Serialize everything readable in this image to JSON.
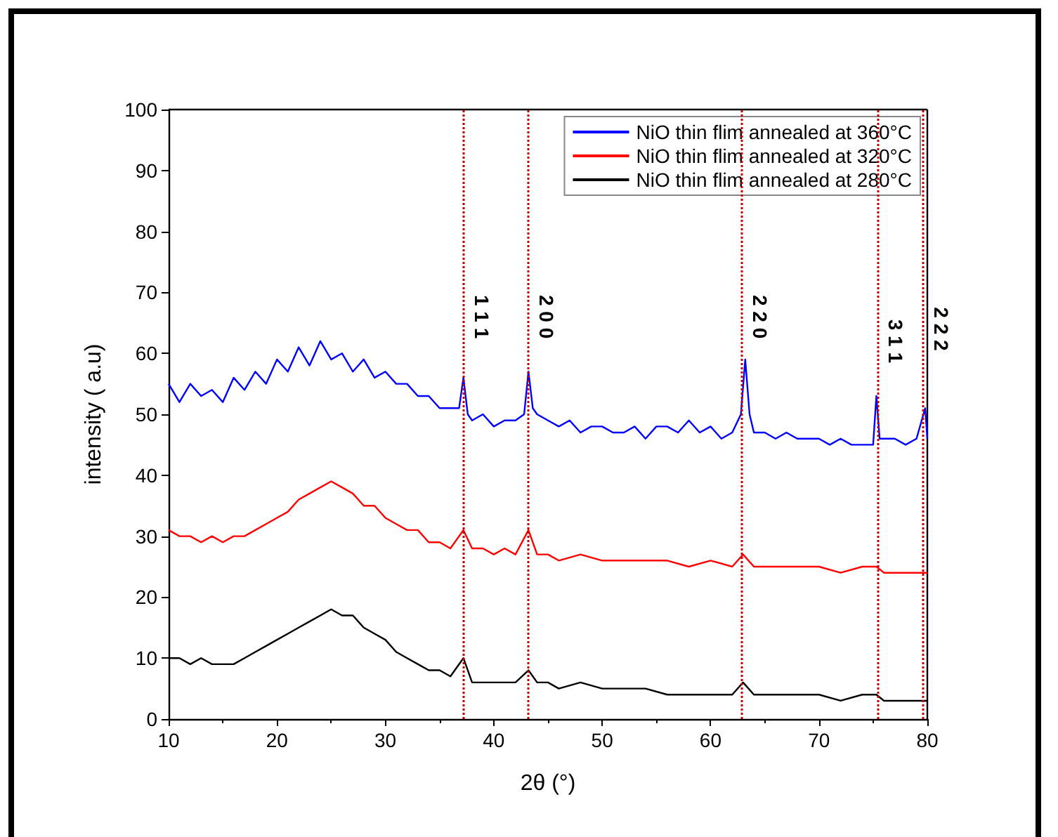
{
  "chart_data": {
    "type": "line",
    "xlabel": "2θ (°)",
    "ylabel": "intensity ( a.u)",
    "xlim": [
      10,
      80
    ],
    "xticks": [
      10,
      20,
      30,
      40,
      50,
      60,
      70,
      80
    ],
    "ylim": [
      0,
      100
    ],
    "yticks": [
      0,
      10,
      20,
      30,
      40,
      50,
      60,
      70,
      80,
      90,
      100
    ],
    "grid": false,
    "legend": "top right",
    "marker": "none",
    "line_style": "solid",
    "series": [
      {
        "name": "NiO thin flim annealed at 360°C",
        "color": "#0000ff",
        "x": [
          10,
          11,
          12,
          13,
          14,
          15,
          16,
          17,
          18,
          19,
          20,
          21,
          22,
          23,
          24,
          25,
          26,
          27,
          28,
          29,
          30,
          31,
          32,
          33,
          34,
          35,
          36,
          36.8,
          37.2,
          37.6,
          38,
          39,
          40,
          41,
          42,
          42.8,
          43.2,
          43.6,
          44,
          45,
          46,
          47,
          48,
          49,
          50,
          51,
          52,
          53,
          54,
          55,
          56,
          57,
          58,
          59,
          60,
          61,
          62,
          62.8,
          63.2,
          63.6,
          64,
          65,
          66,
          67,
          68,
          69,
          70,
          71,
          72,
          73,
          74,
          75,
          75.3,
          75.6,
          76,
          77,
          78,
          79,
          79.8,
          80
        ],
        "values": [
          55,
          52,
          55,
          53,
          54,
          52,
          56,
          54,
          57,
          55,
          59,
          57,
          61,
          58,
          62,
          59,
          60,
          57,
          59,
          56,
          57,
          55,
          55,
          53,
          53,
          51,
          51,
          51,
          56,
          50,
          49,
          50,
          48,
          49,
          49,
          50,
          57,
          51,
          50,
          49,
          48,
          49,
          47,
          48,
          48,
          47,
          47,
          48,
          46,
          48,
          48,
          47,
          49,
          47,
          48,
          46,
          47,
          50,
          59,
          50,
          47,
          47,
          46,
          47,
          46,
          46,
          46,
          45,
          46,
          45,
          45,
          45,
          53,
          46,
          46,
          46,
          45,
          46,
          51,
          46
        ]
      },
      {
        "name": "NiO thin flim annealed at 320°C",
        "color": "#ff0000",
        "x": [
          10,
          11,
          12,
          13,
          14,
          15,
          16,
          17,
          18,
          19,
          20,
          21,
          22,
          23,
          24,
          25,
          26,
          27,
          28,
          29,
          30,
          31,
          32,
          33,
          34,
          35,
          36,
          37.2,
          38,
          39,
          40,
          41,
          42,
          43.2,
          44,
          45,
          46,
          48,
          50,
          52,
          54,
          56,
          58,
          60,
          62,
          63,
          64,
          66,
          68,
          70,
          72,
          74,
          75.3,
          76,
          78,
          80
        ],
        "values": [
          31,
          30,
          30,
          29,
          30,
          29,
          30,
          30,
          31,
          32,
          33,
          34,
          36,
          37,
          38,
          39,
          38,
          37,
          35,
          35,
          33,
          32,
          31,
          31,
          29,
          29,
          28,
          31,
          28,
          28,
          27,
          28,
          27,
          31,
          27,
          27,
          26,
          27,
          26,
          26,
          26,
          26,
          25,
          26,
          25,
          27,
          25,
          25,
          25,
          25,
          24,
          25,
          25,
          24,
          24,
          24
        ]
      },
      {
        "name": "NiO thin flim annealed at 280°C",
        "color": "#000000",
        "x": [
          10,
          11,
          12,
          13,
          14,
          15,
          16,
          17,
          18,
          19,
          20,
          21,
          22,
          23,
          24,
          25,
          26,
          27,
          28,
          29,
          30,
          31,
          32,
          33,
          34,
          35,
          36,
          37.2,
          38,
          39,
          40,
          41,
          42,
          43.2,
          44,
          45,
          46,
          48,
          50,
          52,
          54,
          56,
          58,
          60,
          62,
          63,
          64,
          66,
          68,
          70,
          72,
          74,
          75.3,
          76,
          78,
          80
        ],
        "values": [
          10,
          10,
          9,
          10,
          9,
          9,
          9,
          10,
          11,
          12,
          13,
          14,
          15,
          16,
          17,
          18,
          17,
          17,
          15,
          14,
          13,
          11,
          10,
          9,
          8,
          8,
          7,
          10,
          6,
          6,
          6,
          6,
          6,
          8,
          6,
          6,
          5,
          6,
          5,
          5,
          5,
          4,
          4,
          4,
          4,
          6,
          4,
          4,
          4,
          4,
          3,
          4,
          4,
          3,
          3,
          3
        ]
      }
    ],
    "ref_lines": [
      {
        "axis": "x",
        "value": 37.2,
        "color": "#c00000",
        "line_style": "dotted"
      },
      {
        "axis": "x",
        "value": 43.2,
        "color": "#c00000",
        "line_style": "dotted"
      },
      {
        "axis": "x",
        "value": 62.9,
        "color": "#c00000",
        "line_style": "dotted"
      },
      {
        "axis": "x",
        "value": 75.4,
        "color": "#c00000",
        "line_style": "dotted"
      },
      {
        "axis": "x",
        "value": 79.6,
        "color": "#c00000",
        "line_style": "dotted"
      }
    ],
    "annotations": [
      {
        "text": "1 1 1",
        "x": 37.2,
        "y": 66
      },
      {
        "text": "2 0 0",
        "x": 43.2,
        "y": 66
      },
      {
        "text": "2 2 0",
        "x": 62.9,
        "y": 66
      },
      {
        "text": "3 1 1",
        "x": 75.4,
        "y": 62
      },
      {
        "text": "2 2 2",
        "x": 79.6,
        "y": 64
      }
    ]
  }
}
